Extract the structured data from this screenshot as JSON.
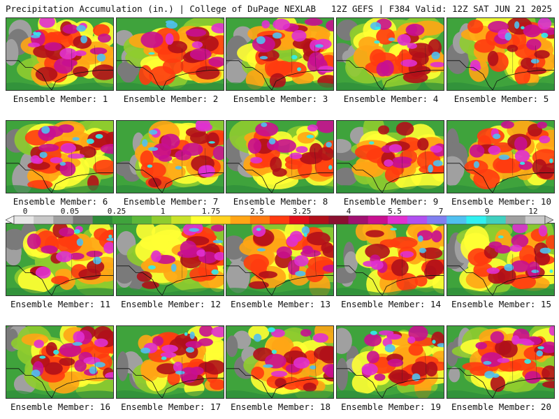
{
  "header": {
    "title_left": "Precipitation Accumulation (in.) | College of DuPage NEXLAB",
    "title_right": "12Z GEFS | F384 Valid: 12Z SAT JUN 21 2025"
  },
  "members": [
    {
      "label": "Ensemble Member: 1",
      "intensity": 0.75
    },
    {
      "label": "Ensemble Member: 2",
      "intensity": 0.45
    },
    {
      "label": "Ensemble Member: 3",
      "intensity": 0.8
    },
    {
      "label": "Ensemble Member: 4",
      "intensity": 0.6
    },
    {
      "label": "Ensemble Member: 5",
      "intensity": 0.6
    },
    {
      "label": "Ensemble Member: 6",
      "intensity": 0.7
    },
    {
      "label": "Ensemble Member: 7",
      "intensity": 0.7
    },
    {
      "label": "Ensemble Member: 8",
      "intensity": 0.55
    },
    {
      "label": "Ensemble Member: 9",
      "intensity": 0.4
    },
    {
      "label": "Ensemble Member: 10",
      "intensity": 0.55
    },
    {
      "label": "Ensemble Member: 11",
      "intensity": 0.55
    },
    {
      "label": "Ensemble Member: 12",
      "intensity": 0.65
    },
    {
      "label": "Ensemble Member: 13",
      "intensity": 0.6
    },
    {
      "label": "Ensemble Member: 14",
      "intensity": 0.45
    },
    {
      "label": "Ensemble Member: 15",
      "intensity": 0.5
    },
    {
      "label": "Ensemble Member: 16",
      "intensity": 0.7
    },
    {
      "label": "Ensemble Member: 17",
      "intensity": 0.7
    },
    {
      "label": "Ensemble Member: 18",
      "intensity": 0.6
    },
    {
      "label": "Ensemble Member: 19",
      "intensity": 0.65
    },
    {
      "label": "Ensemble Member: 20",
      "intensity": 0.75
    }
  ],
  "colorbar": {
    "tick_labels": [
      "0",
      "0.05",
      "0.25",
      "1",
      "1.75",
      "2.5",
      "3.25",
      "4",
      "5.5",
      "7",
      "9",
      "12"
    ],
    "colors": [
      "#e6e6e6",
      "#c8c8c8",
      "#a0a0a0",
      "#7a7a7a",
      "#2e8b3a",
      "#3fa33c",
      "#5cb83a",
      "#8fcc2f",
      "#c9e22a",
      "#ffff33",
      "#ffd21f",
      "#ffa515",
      "#ff7a10",
      "#ff3b10",
      "#e0101a",
      "#b0101a",
      "#8b1030",
      "#a01070",
      "#c81090",
      "#e030d0",
      "#b050f0",
      "#8080f0",
      "#50c0f0",
      "#30f0f0",
      "#40d0c0",
      "#a0a0a0",
      "#c8c8c8"
    ]
  }
}
